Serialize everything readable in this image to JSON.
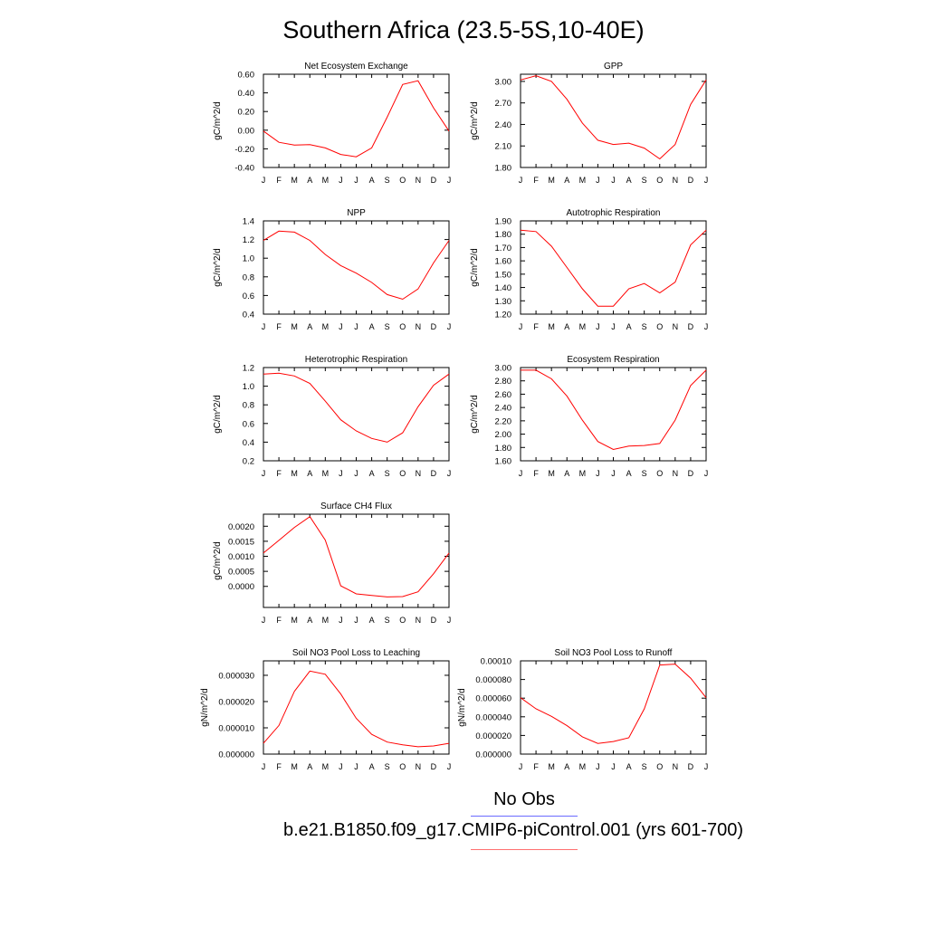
{
  "title": "Southern Africa (23.5-5S,10-40E)",
  "legend": {
    "obs_label": "No Obs",
    "obs_color": "#6a6aff",
    "model_label": "b.e21.B1850.f09_g17.CMIP6-piControl.001 (yrs 601-700)",
    "model_color": "#ff7070"
  },
  "line_color": "#ff0000",
  "months": [
    "J",
    "F",
    "M",
    "A",
    "M",
    "J",
    "J",
    "A",
    "S",
    "O",
    "N",
    "D",
    "J"
  ],
  "chart_data": [
    {
      "type": "line",
      "title": "Net Ecosystem Exchange",
      "ylabel": "gC/m^2/d",
      "ylim": [
        -0.4,
        0.6
      ],
      "yticks": [
        "-0.40",
        "-0.20",
        "0.00",
        "0.20",
        "0.40",
        "0.60"
      ],
      "values": [
        -0.01,
        -0.13,
        -0.16,
        -0.155,
        -0.19,
        -0.26,
        -0.285,
        -0.19,
        0.14,
        0.49,
        0.53,
        0.24,
        -0.01
      ]
    },
    {
      "type": "line",
      "title": "GPP",
      "ylabel": "gC/m^2/d",
      "ylim": [
        1.8,
        3.1
      ],
      "yticks": [
        "1.80",
        "2.10",
        "2.40",
        "2.70",
        "3.00"
      ],
      "values": [
        3.02,
        3.08,
        3.0,
        2.75,
        2.42,
        2.18,
        2.12,
        2.14,
        2.07,
        1.92,
        2.12,
        2.68,
        3.02
      ]
    },
    {
      "type": "line",
      "title": "NPP",
      "ylabel": "gC/m^2/d",
      "ylim": [
        0.4,
        1.4
      ],
      "yticks": [
        "0.4",
        "0.6",
        "0.8",
        "1.0",
        "1.2",
        "1.4"
      ],
      "values": [
        1.19,
        1.29,
        1.28,
        1.19,
        1.04,
        0.92,
        0.84,
        0.74,
        0.61,
        0.56,
        0.67,
        0.95,
        1.19
      ]
    },
    {
      "type": "line",
      "title": "Autotrophic Respiration",
      "ylabel": "gC/m^2/d",
      "ylim": [
        1.2,
        1.9
      ],
      "yticks": [
        "1.20",
        "1.30",
        "1.40",
        "1.50",
        "1.60",
        "1.70",
        "1.80",
        "1.90"
      ],
      "values": [
        1.83,
        1.82,
        1.71,
        1.55,
        1.39,
        1.26,
        1.26,
        1.39,
        1.43,
        1.36,
        1.44,
        1.72,
        1.83
      ]
    },
    {
      "type": "line",
      "title": "Heterotrophic Respiration",
      "ylabel": "gC/m^2/d",
      "ylim": [
        0.2,
        1.2
      ],
      "yticks": [
        "0.2",
        "0.4",
        "0.6",
        "0.8",
        "1.0",
        "1.2"
      ],
      "values": [
        1.13,
        1.14,
        1.11,
        1.03,
        0.84,
        0.64,
        0.52,
        0.44,
        0.4,
        0.5,
        0.78,
        1.01,
        1.13
      ]
    },
    {
      "type": "line",
      "title": "Ecosystem Respiration",
      "ylabel": "gC/m^2/d",
      "ylim": [
        1.6,
        3.0
      ],
      "yticks": [
        "1.60",
        "1.80",
        "2.00",
        "2.20",
        "2.40",
        "2.60",
        "2.80",
        "3.00"
      ],
      "values": [
        2.96,
        2.96,
        2.83,
        2.57,
        2.21,
        1.89,
        1.77,
        1.82,
        1.83,
        1.86,
        2.21,
        2.73,
        2.96
      ]
    },
    {
      "type": "line",
      "title": "Surface CH4 Flux",
      "ylabel": "gC/m^2/d",
      "ylim": [
        -0.0007,
        0.0024
      ],
      "yticks": [
        "0.0000",
        "0.0005",
        "0.0010",
        "0.0015",
        "0.0020"
      ],
      "yticks_at": [
        0,
        0.0005,
        0.001,
        0.0015,
        0.002
      ],
      "values": [
        0.00111,
        0.00153,
        0.00196,
        0.00232,
        0.00154,
        2e-05,
        -0.00025,
        -0.0003,
        -0.00035,
        -0.00034,
        -0.00018,
        0.00042,
        0.00111
      ]
    },
    null,
    {
      "type": "line",
      "title": "Soil NO3 Pool Loss to Leaching",
      "ylabel": "gN/m^2/d",
      "ylim": [
        0,
        3.55e-05
      ],
      "yticks": [
        "0.000000",
        "0.000010",
        "0.000020",
        "0.000030"
      ],
      "yticks_at": [
        0,
        1e-05,
        2e-05,
        3e-05
      ],
      "values": [
        4.1e-06,
        1.09e-05,
        2.39e-05,
        3.16e-05,
        3.04e-05,
        2.29e-05,
        1.36e-05,
        7.5e-06,
        4.6e-06,
        3.5e-06,
        2.8e-06,
        3.1e-06,
        4.1e-06
      ]
    },
    {
      "type": "line",
      "title": "Soil NO3 Pool Loss to Runoff",
      "ylabel": "gN/m^2/d",
      "ylim": [
        0,
        0.0001
      ],
      "yticks": [
        "0.000000",
        "0.000020",
        "0.000040",
        "0.000060",
        "0.000080",
        "0.00010"
      ],
      "yticks_at": [
        0,
        2e-05,
        4e-05,
        6e-05,
        8e-05,
        0.0001
      ],
      "values": [
        6.05e-05,
        4.85e-05,
        4.05e-05,
        3.05e-05,
        1.85e-05,
        1.15e-05,
        1.35e-05,
        1.75e-05,
        4.85e-05,
        9.55e-05,
        9.65e-05,
        8.15e-05,
        6.05e-05
      ]
    }
  ]
}
